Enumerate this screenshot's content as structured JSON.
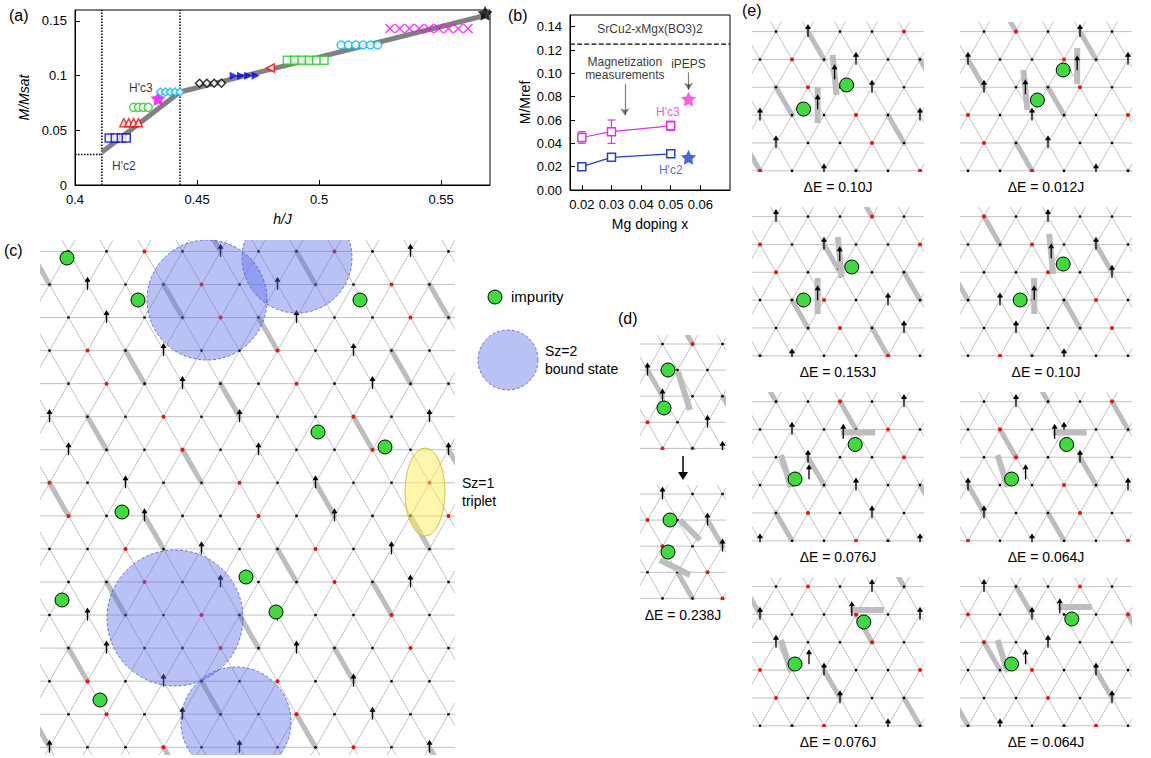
{
  "chart_data": [
    {
      "title": "(a)",
      "type": "scatter",
      "x_label": "h/J",
      "y_label": "M/Msat",
      "xlim": [
        0.4,
        0.57
      ],
      "xticks": [
        0.4,
        0.45,
        0.5,
        0.55
      ],
      "ylim": [
        0,
        0.16
      ],
      "yticks": [
        0,
        0.05,
        0.1,
        0.15
      ],
      "grid": false,
      "series": [
        {
          "type": "line",
          "color": "#000000",
          "line_style": "dotted",
          "x": [
            0.4,
            0.411
          ],
          "values": [
            0.028,
            0.028
          ]
        },
        {
          "type": "line",
          "color": "#000000",
          "line_style": "dotted",
          "x": [
            0.411,
            0.411
          ],
          "values": [
            0,
            0.16
          ]
        },
        {
          "type": "line",
          "color": "#000000",
          "line_style": "dotted",
          "x": [
            0.443,
            0.443
          ],
          "values": [
            0,
            0.16
          ]
        },
        {
          "type": "line",
          "color": "#808080",
          "line_style": "solid",
          "x": [
            0.411,
            0.443,
            0.568
          ],
          "values": [
            0.03,
            0.085,
            0.155
          ]
        },
        {
          "type": "scatter",
          "color": "#0000ff",
          "marker": "open-square",
          "x": [
            0.414,
            0.4165,
            0.419,
            0.421
          ],
          "values": [
            0.043,
            0.043,
            0.043,
            0.043
          ]
        },
        {
          "type": "scatter",
          "color": "#ff0000",
          "marker": "open-triangle",
          "x": [
            0.42,
            0.422,
            0.424,
            0.426
          ],
          "values": [
            0.057,
            0.057,
            0.057,
            0.057
          ]
        },
        {
          "type": "scatter",
          "color": "#22cc22",
          "marker": "open-circle",
          "x": [
            0.424,
            0.426,
            0.428,
            0.43
          ],
          "values": [
            0.071,
            0.071,
            0.071,
            0.071
          ]
        },
        {
          "type": "scatter",
          "color": "#ff00ff",
          "marker": "star",
          "x": [
            0.434
          ],
          "values": [
            0.079
          ]
        },
        {
          "type": "scatter",
          "color": "#00bbee",
          "marker": "open-diamond",
          "x": [
            0.435,
            0.437,
            0.439,
            0.441,
            0.443
          ],
          "values": [
            0.085,
            0.085,
            0.085,
            0.085,
            0.085
          ]
        },
        {
          "type": "scatter",
          "color": "#000000",
          "marker": "open-diamond",
          "x": [
            0.451,
            0.454,
            0.457,
            0.46
          ],
          "values": [
            0.093,
            0.093,
            0.093,
            0.093
          ]
        },
        {
          "type": "scatter",
          "color": "#0000ff",
          "marker": "triangle-right",
          "x": [
            0.465,
            0.468,
            0.471,
            0.474
          ],
          "values": [
            0.1,
            0.1,
            0.1,
            0.1
          ]
        },
        {
          "type": "scatter",
          "color": "#ff0000",
          "marker": "open-triangle-left",
          "x": [
            0.48
          ],
          "values": [
            0.107
          ]
        },
        {
          "type": "scatter",
          "color": "#22cc22",
          "marker": "open-square",
          "x": [
            0.487,
            0.49,
            0.493,
            0.496,
            0.499,
            0.502
          ],
          "values": [
            0.114,
            0.114,
            0.114,
            0.114,
            0.114,
            0.114
          ]
        },
        {
          "type": "scatter",
          "color": "#00bbee",
          "marker": "open-circle",
          "x": [
            0.509,
            0.512,
            0.515,
            0.518,
            0.521,
            0.524
          ],
          "values": [
            0.128,
            0.128,
            0.128,
            0.128,
            0.128,
            0.128
          ]
        },
        {
          "type": "scatter",
          "color": "#ff00ff",
          "marker": "x",
          "x": [
            0.529,
            0.533,
            0.537,
            0.541,
            0.545,
            0.549,
            0.553,
            0.557,
            0.561
          ],
          "values": [
            0.143,
            0.143,
            0.143,
            0.143,
            0.143,
            0.143,
            0.143,
            0.143,
            0.143
          ]
        },
        {
          "type": "scatter",
          "color": "#000000",
          "marker": "star",
          "x": [
            0.568
          ],
          "values": [
            0.157
          ]
        }
      ],
      "annotations": [
        {
          "text": "H'c2",
          "x": 0.42,
          "y": 0.017
        },
        {
          "text": "H'c3",
          "x": 0.427,
          "y": 0.089
        }
      ]
    },
    {
      "title": "(b)",
      "type": "scatter",
      "x_label": "Mg doping x",
      "y_label": "M/Mref",
      "xlim": [
        0.016,
        0.07
      ],
      "xticks": [
        0.02,
        0.03,
        0.04,
        0.05,
        0.06
      ],
      "ylim": [
        0,
        0.15
      ],
      "yticks": [
        {
          "value": 0,
          "label": "0.00"
        },
        {
          "value": 0.02,
          "label": "0.02"
        },
        {
          "value": 0.04,
          "label": "0.04"
        },
        {
          "value": 0.06,
          "label": "0.06"
        },
        {
          "value": 0.08,
          "label": "0.08"
        },
        {
          "value": 0.1,
          "label": "0.10"
        },
        {
          "value": 0.12,
          "label": "0.12"
        },
        {
          "value": 0.14,
          "label": "0.14"
        }
      ],
      "grid": false,
      "series": [
        {
          "type": "line",
          "color": "#000000",
          "line_style": "dashed",
          "x": [
            0.016,
            0.07
          ],
          "values": [
            0.125,
            0.125
          ]
        },
        {
          "type": "line",
          "color": "#e030e0",
          "marker": "open-square",
          "line_style": "solid",
          "x": [
            0.02,
            0.03,
            0.05
          ],
          "values": [
            0.045,
            0.05,
            0.055
          ],
          "errors": [
            0.005,
            0.01,
            0.004
          ]
        },
        {
          "type": "line",
          "color": "#1f3fd0",
          "marker": "open-square",
          "line_style": "solid",
          "x": [
            0.02,
            0.03,
            0.05
          ],
          "values": [
            0.02,
            0.028,
            0.031
          ],
          "errors": [
            0.002,
            0.003,
            0.002
          ]
        },
        {
          "type": "scatter",
          "color": "#ff33dd",
          "marker": "star",
          "x": [
            0.056
          ],
          "values": [
            0.078
          ]
        },
        {
          "type": "scatter",
          "color": "#1f3fd0",
          "marker": "star",
          "x": [
            0.056
          ],
          "values": [
            0.028
          ]
        }
      ],
      "annotations": [
        {
          "text": "SrCu2-xMgx(BO3)2",
          "x": 0.043,
          "y": 0.138
        },
        {
          "text": "Magnetization measurements",
          "x": 0.0345,
          "y": 0.104
        },
        {
          "text": "iPEPS",
          "x": 0.056,
          "y": 0.108
        },
        {
          "text": "H'c3",
          "x": 0.049,
          "y": 0.067,
          "color": "#e030e0"
        },
        {
          "text": "H'c2",
          "x": 0.05,
          "y": 0.017,
          "color": "#1f3fd0"
        }
      ],
      "arrows": [
        {
          "from": [
            0.0345,
            0.091
          ],
          "to": [
            0.0345,
            0.064
          ]
        },
        {
          "from": [
            0.056,
            0.101
          ],
          "to": [
            0.056,
            0.086
          ]
        }
      ]
    }
  ],
  "diagram": {
    "c": {
      "title": "(c)",
      "legend": [
        {
          "text": "impurity"
        },
        {
          "text": "Sz=2 bound state"
        },
        {
          "text": "Sz=1 triplet"
        }
      ]
    },
    "d": {
      "title": "(d)",
      "label": "ΔE = 0.238J"
    },
    "e": {
      "title": "(e)",
      "labels": [
        "ΔE = 0.10J",
        "ΔE = 0.012J",
        "ΔE = 0.153J",
        "ΔE = 0.10J",
        "ΔE = 0.076J",
        "ΔE = 0.064J",
        "ΔE = 0.076J",
        "ΔE = 0.064J"
      ]
    }
  }
}
